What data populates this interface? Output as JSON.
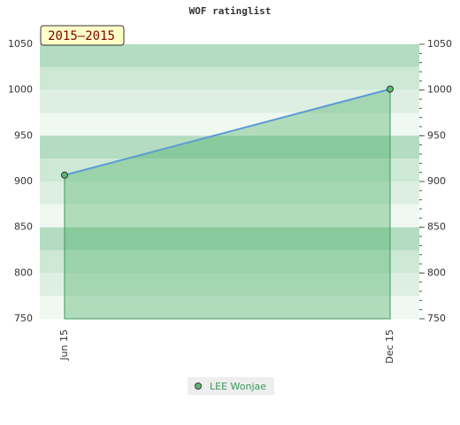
{
  "chart_data": {
    "type": "area",
    "title": "WOF ratinglist",
    "annotation": "2015–2015",
    "categories": [
      "Jun 15",
      "Dec 15"
    ],
    "series": [
      {
        "name": "LEE Wonjae",
        "color": "#5b9bd5",
        "values": [
          907,
          1001
        ]
      }
    ],
    "ylim": [
      750,
      1050
    ],
    "yticks": [
      750,
      800,
      850,
      900,
      950,
      1000,
      1050
    ],
    "grid": true,
    "legend": "bottom"
  }
}
